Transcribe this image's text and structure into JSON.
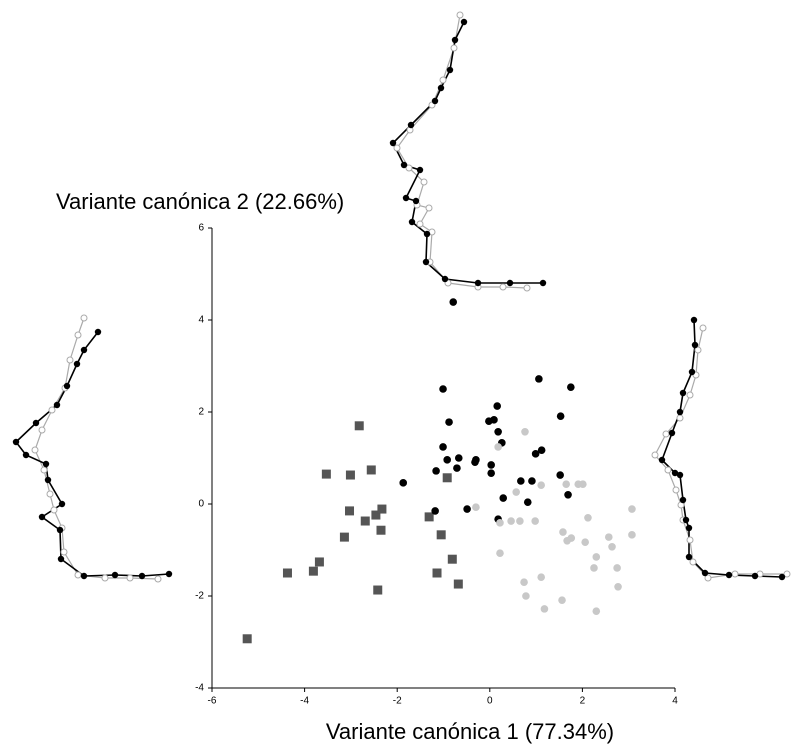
{
  "chart_data": {
    "type": "scatter",
    "x_label": "Variante canónica 1 (77.34%)",
    "y_label": "Variante canónica 2 (22.66%)",
    "xlim": [
      -6,
      4
    ],
    "xticks": [
      -6,
      -4,
      -2,
      0,
      2,
      4
    ],
    "ylim": [
      -4,
      6
    ],
    "yticks": [
      -4,
      -2,
      0,
      2,
      4,
      6
    ],
    "series": [
      {
        "color": "#555555",
        "marker": "square",
        "x": [
          -5.24,
          -4.37,
          -3.81,
          -3.68,
          -3.53,
          -3.14,
          -3.03,
          -3.01,
          -2.82,
          -2.69,
          -2.56,
          -2.46,
          -2.42,
          -2.35,
          -2.33,
          -1.31,
          -1.14,
          -1.05,
          -0.92,
          -0.81,
          -0.68
        ],
        "values": [
          -2.93,
          -1.5,
          -1.46,
          -1.26,
          0.65,
          -0.72,
          -0.15,
          0.63,
          1.7,
          -0.37,
          0.74,
          -0.24,
          -1.87,
          -0.57,
          -0.11,
          -0.28,
          -1.5,
          -0.67,
          0.57,
          -1.2,
          -1.74
        ]
      },
      {
        "color": "#000000",
        "marker": "circle",
        "x": [
          -0.79,
          -1.01,
          1.06,
          1.75,
          0.16,
          1.53,
          -0.88,
          -0.02,
          0.09,
          0.18,
          0.26,
          -1.01,
          1.12,
          0.99,
          -0.67,
          -0.92,
          -0.3,
          -0.32,
          0.03,
          -1.16,
          -0.71,
          0.03,
          0.67,
          0.91,
          1.52,
          -1.87,
          1.69,
          0.29,
          0.82,
          -1.18,
          -0.49,
          0.18
        ],
        "values": [
          4.39,
          2.5,
          2.72,
          2.54,
          2.13,
          1.91,
          1.78,
          1.8,
          1.83,
          1.57,
          1.33,
          1.24,
          1.17,
          1.09,
          1.0,
          0.96,
          0.96,
          0.91,
          0.85,
          0.72,
          0.78,
          0.67,
          0.5,
          0.5,
          0.63,
          0.46,
          0.2,
          0.13,
          0.04,
          -0.15,
          -0.11,
          -0.33
        ]
      },
      {
        "color": "#c8c8c8",
        "marker": "circle",
        "x": [
          0.76,
          0.18,
          1.65,
          1.91,
          2.01,
          1.11,
          0.57,
          0.65,
          0.46,
          0.98,
          0.22,
          -0.3,
          3.07,
          2.12,
          2.57,
          2.64,
          2.06,
          3.07,
          1.58,
          1.76,
          1.67,
          2.3,
          2.25,
          2.75,
          0.22,
          0.74,
          1.11,
          2.77,
          0.78,
          1.56,
          1.18,
          2.3
        ],
        "values": [
          1.57,
          1.24,
          0.43,
          0.43,
          0.43,
          0.41,
          0.26,
          -0.37,
          -0.37,
          -0.37,
          -0.41,
          -0.07,
          -0.11,
          -0.3,
          -0.72,
          -0.93,
          -0.83,
          -0.67,
          -0.61,
          -0.74,
          -0.8,
          -1.15,
          -1.39,
          -1.39,
          -1.07,
          -1.7,
          -1.59,
          -1.8,
          -2.0,
          -2.09,
          -2.28,
          -2.33
        ]
      }
    ]
  }
}
